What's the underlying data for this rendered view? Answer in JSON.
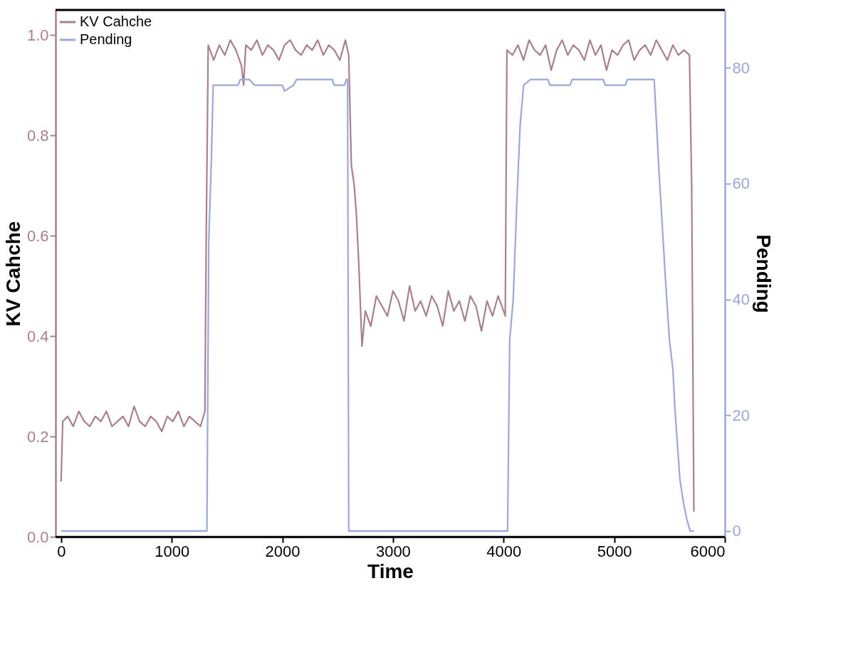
{
  "chart_data": {
    "type": "line",
    "xlabel": "Time",
    "ylabel": "KV Cahche",
    "y2label": "Pending",
    "xlim": [
      -50,
      6000
    ],
    "xticks": [
      0,
      1000,
      2000,
      3000,
      4000,
      5000,
      6000
    ],
    "ylim": [
      0,
      1.05
    ],
    "yticks": [
      {
        "value": 0,
        "label": "0.0"
      },
      0.2,
      0.4,
      0.6,
      0.8,
      {
        "value": 1,
        "label": "1.0"
      }
    ],
    "y2lim": [
      -1,
      90
    ],
    "y2ticks": [
      0,
      20,
      40,
      60,
      80
    ],
    "legend": "top left",
    "series": [
      {
        "name": "KV Cahche",
        "color": "#a9808f",
        "x": [
          0,
          15,
          60,
          110,
          160,
          210,
          260,
          310,
          360,
          410,
          460,
          510,
          560,
          610,
          660,
          710,
          760,
          810,
          860,
          910,
          960,
          1010,
          1060,
          1110,
          1160,
          1210,
          1260,
          1300,
          1312,
          1330,
          1380,
          1430,
          1480,
          1530,
          1580,
          1630,
          1650,
          1670,
          1720,
          1770,
          1820,
          1870,
          1920,
          1970,
          2020,
          2070,
          2120,
          2170,
          2220,
          2270,
          2320,
          2370,
          2420,
          2470,
          2520,
          2570,
          2600,
          2624,
          2650,
          2670,
          2690,
          2720,
          2750,
          2800,
          2850,
          2900,
          2950,
          3000,
          3050,
          3100,
          3150,
          3200,
          3250,
          3300,
          3350,
          3400,
          3450,
          3500,
          3550,
          3600,
          3650,
          3700,
          3750,
          3800,
          3850,
          3900,
          3950,
          4000,
          4015,
          4030,
          4080,
          4130,
          4180,
          4230,
          4280,
          4330,
          4380,
          4430,
          4480,
          4530,
          4580,
          4630,
          4680,
          4730,
          4780,
          4830,
          4880,
          4930,
          4980,
          5030,
          5080,
          5130,
          5180,
          5230,
          5280,
          5330,
          5380,
          5430,
          5480,
          5530,
          5580,
          5630,
          5680,
          5700,
          5720
        ],
        "values": [
          0.11,
          0.23,
          0.24,
          0.22,
          0.25,
          0.23,
          0.22,
          0.24,
          0.23,
          0.25,
          0.22,
          0.23,
          0.24,
          0.22,
          0.26,
          0.23,
          0.22,
          0.24,
          0.23,
          0.21,
          0.24,
          0.23,
          0.25,
          0.22,
          0.24,
          0.23,
          0.22,
          0.25,
          0.6,
          0.98,
          0.95,
          0.98,
          0.96,
          0.99,
          0.97,
          0.94,
          0.9,
          0.98,
          0.97,
          0.99,
          0.96,
          0.98,
          0.97,
          0.95,
          0.98,
          0.99,
          0.97,
          0.96,
          0.98,
          0.97,
          0.99,
          0.96,
          0.98,
          0.97,
          0.95,
          0.99,
          0.96,
          0.74,
          0.7,
          0.64,
          0.55,
          0.38,
          0.45,
          0.42,
          0.48,
          0.46,
          0.44,
          0.49,
          0.47,
          0.43,
          0.5,
          0.45,
          0.47,
          0.44,
          0.48,
          0.46,
          0.42,
          0.49,
          0.45,
          0.47,
          0.43,
          0.48,
          0.46,
          0.41,
          0.47,
          0.44,
          0.48,
          0.45,
          0.44,
          0.97,
          0.96,
          0.98,
          0.95,
          0.99,
          0.97,
          0.96,
          0.98,
          0.93,
          0.97,
          0.99,
          0.96,
          0.98,
          0.97,
          0.95,
          0.99,
          0.96,
          0.98,
          0.93,
          0.97,
          0.96,
          0.98,
          0.99,
          0.95,
          0.97,
          0.98,
          0.96,
          0.99,
          0.97,
          0.95,
          0.98,
          0.96,
          0.97,
          0.96,
          0.7,
          0.05
        ]
      },
      {
        "name": "Pending",
        "color": "#9ba8d8",
        "axis": "y2",
        "x": [
          0,
          1318,
          1335,
          1360,
          1375,
          1400,
          1600,
          1620,
          1700,
          1750,
          2000,
          2020,
          2100,
          2130,
          2450,
          2470,
          2560,
          2580,
          2590,
          2600,
          4036,
          4055,
          4087,
          4118,
          4149,
          4181,
          4243,
          4400,
          4420,
          4600,
          4620,
          4900,
          4920,
          5100,
          5120,
          5361,
          5405,
          5468,
          5499,
          5530,
          5549,
          5593,
          5625,
          5656,
          5687,
          5720
        ],
        "values": [
          0,
          0,
          50,
          65,
          77,
          77,
          77,
          78,
          78,
          77,
          77,
          76,
          77,
          78,
          78,
          77,
          77,
          78,
          78,
          0,
          0,
          33,
          40,
          56,
          70,
          77,
          78,
          78,
          77,
          77,
          78,
          78,
          77,
          77,
          78,
          78,
          62,
          42,
          33,
          28,
          21,
          9,
          5,
          2,
          0,
          0
        ]
      }
    ]
  }
}
